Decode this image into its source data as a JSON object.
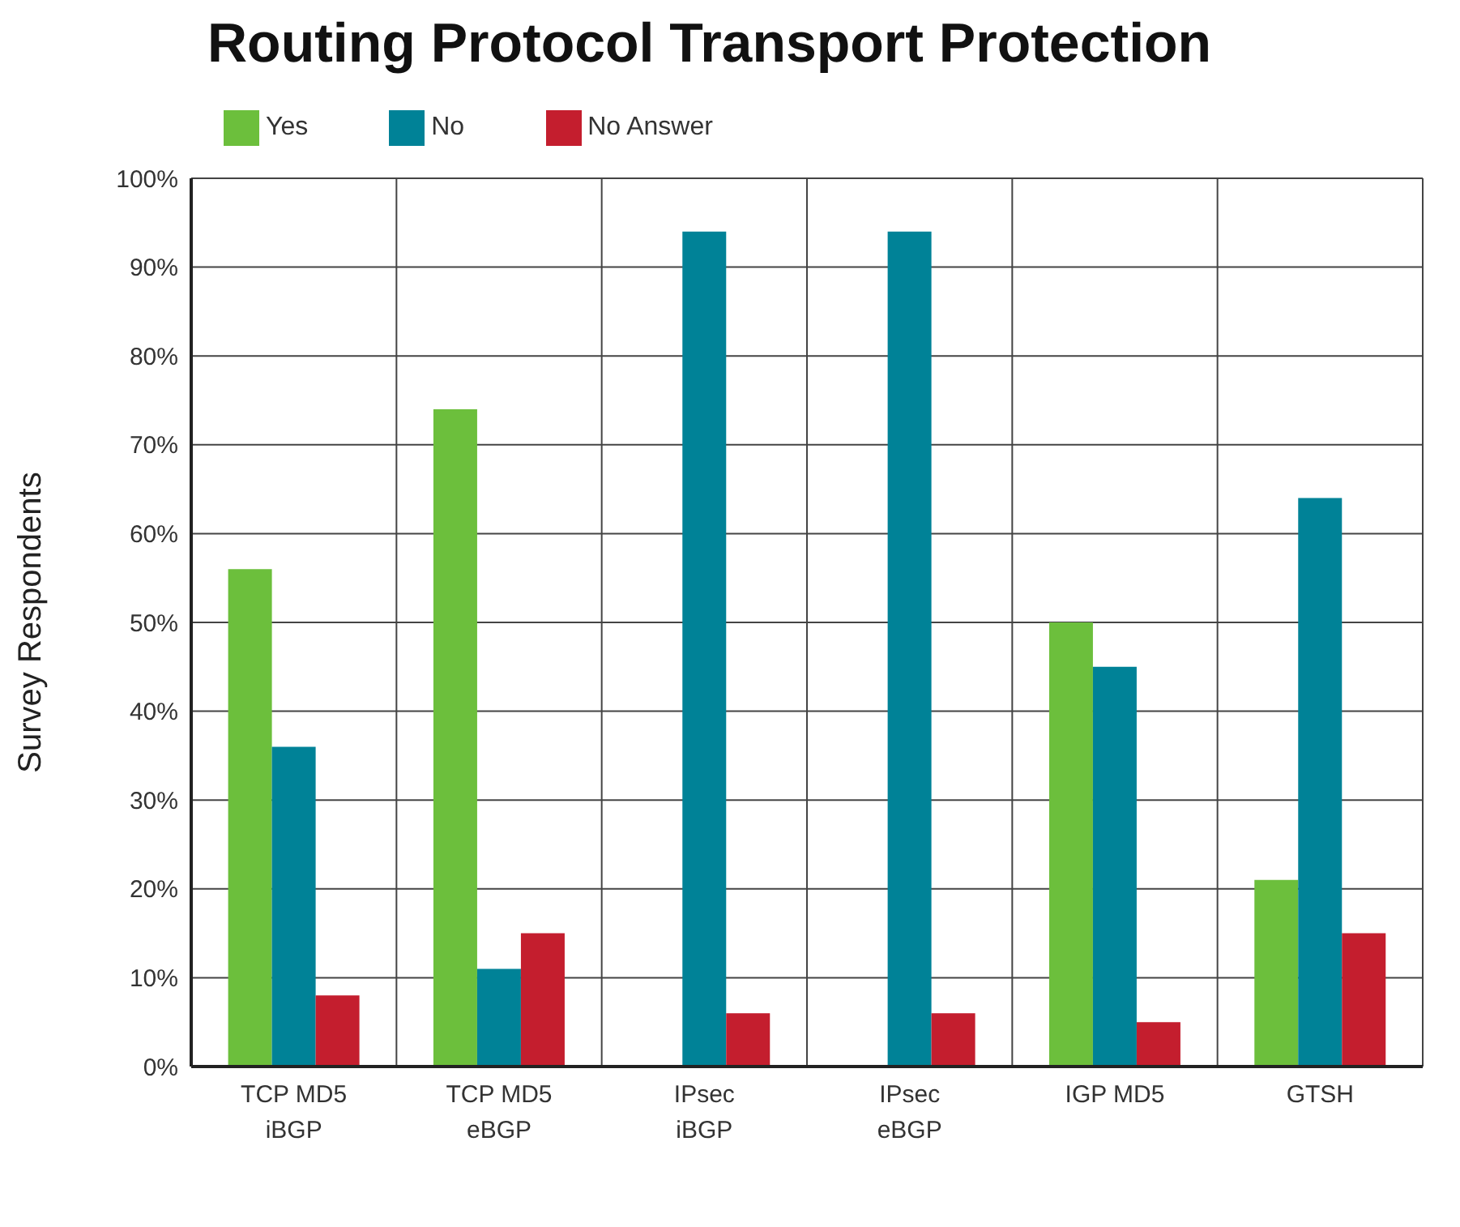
{
  "chart_data": {
    "type": "bar",
    "title": "Routing Protocol Transport Protection",
    "ylabel": "Survey Respondents",
    "categories": [
      "TCP MD5\niBGP",
      "TCP MD5\neBGP",
      "IPsec\niBGP",
      "IPsec\neBGP",
      "IGP MD5",
      "GTSH"
    ],
    "series": [
      {
        "name": "Yes",
        "color": "#6cbf3c",
        "values": [
          56,
          74,
          0,
          0,
          50,
          21
        ]
      },
      {
        "name": "No",
        "color": "#008297",
        "values": [
          36,
          11,
          94,
          94,
          45,
          64
        ]
      },
      {
        "name": "No Answer",
        "color": "#c41e2e",
        "values": [
          8,
          15,
          6,
          6,
          5,
          15
        ]
      }
    ],
    "ylim": [
      0,
      100
    ],
    "yticks": [
      {
        "value": 0,
        "label": "0%"
      },
      {
        "value": 10,
        "label": "10%"
      },
      {
        "value": 20,
        "label": "20%"
      },
      {
        "value": 30,
        "label": "30%"
      },
      {
        "value": 40,
        "label": "40%"
      },
      {
        "value": 50,
        "label": "50%"
      },
      {
        "value": 60,
        "label": "60%"
      },
      {
        "value": 70,
        "label": "70%"
      },
      {
        "value": 80,
        "label": "80%"
      },
      {
        "value": 90,
        "label": "90%"
      },
      {
        "value": 100,
        "label": "100%"
      }
    ],
    "grid": true,
    "legend": "top left"
  }
}
